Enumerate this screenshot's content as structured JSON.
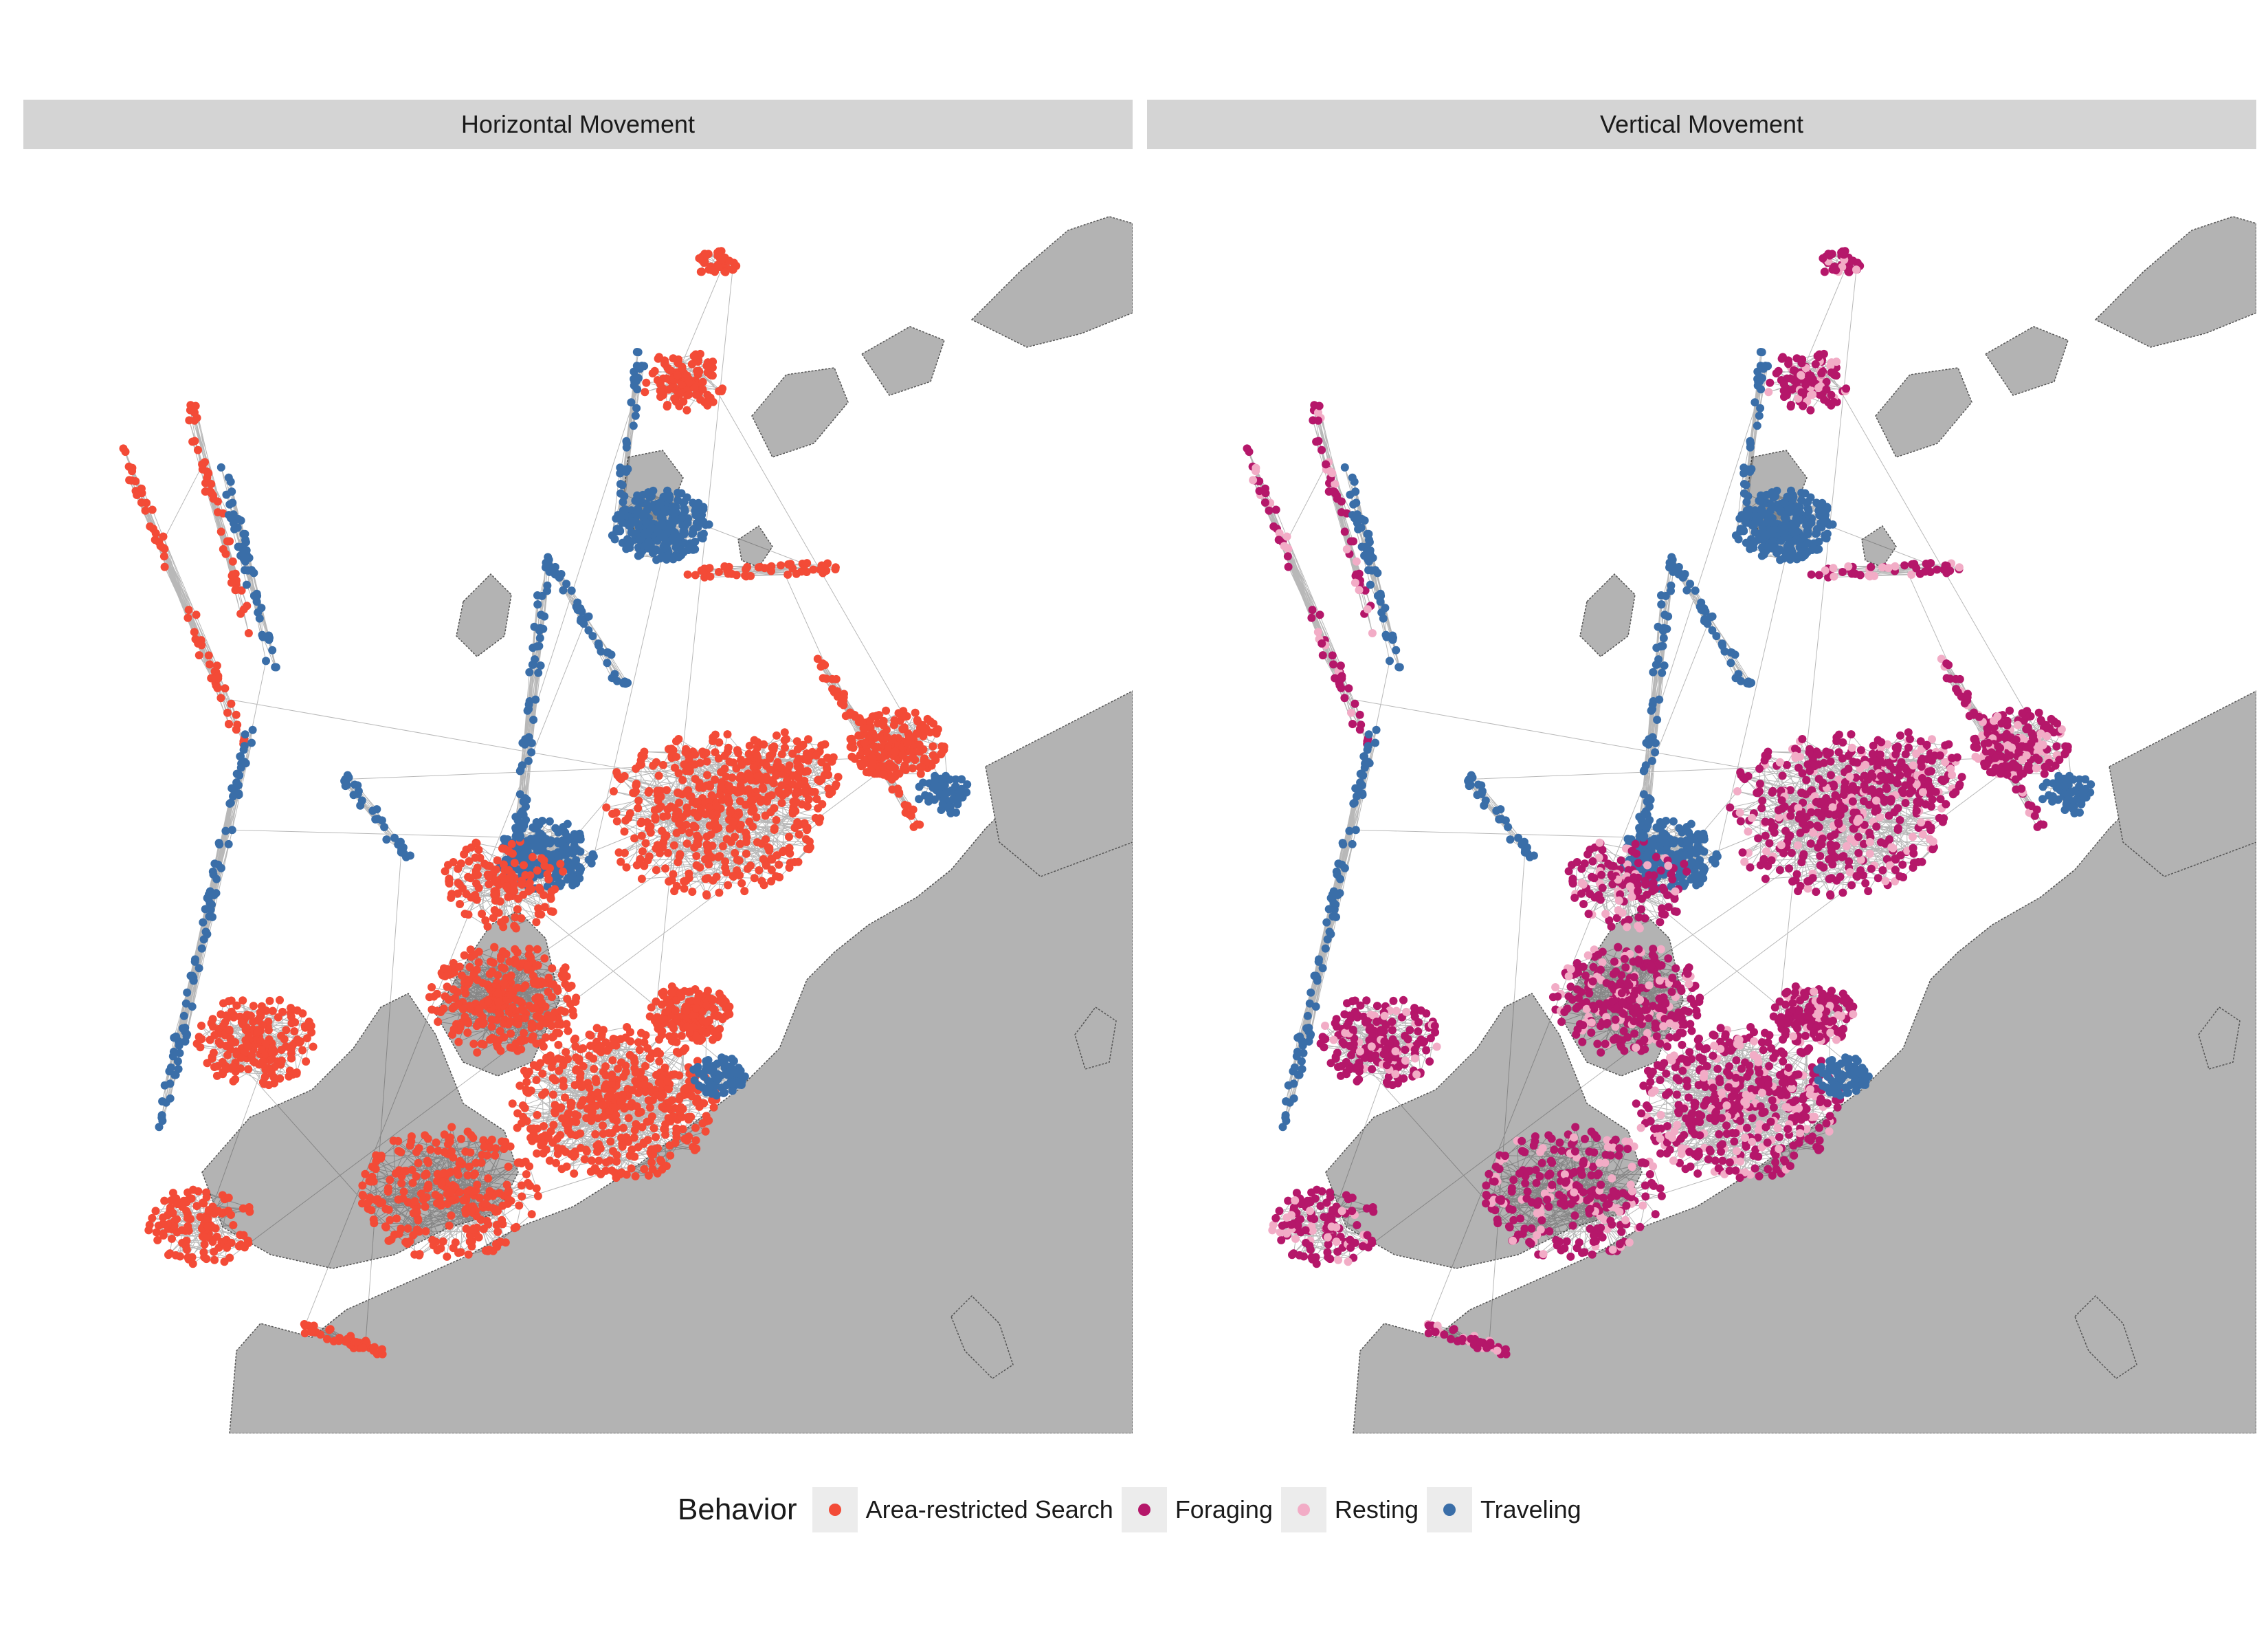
{
  "chart_data": {
    "type": "scatter",
    "panels": [
      {
        "title": "Horizontal Movement",
        "behaviors": [
          "Area-restricted Search",
          "Traveling"
        ]
      },
      {
        "title": "Vertical Movement",
        "behaviors": [
          "Foraging",
          "Resting",
          "Traveling"
        ]
      }
    ],
    "legend": {
      "title": "Behavior",
      "placement": "bottom",
      "items": [
        {
          "label": "Area-restricted Search",
          "color": "#f34b37"
        },
        {
          "label": "Foraging",
          "color": "#b5176a"
        },
        {
          "label": "Resting",
          "color": "#f2acc6"
        },
        {
          "label": "Traveling",
          "color": "#3a6ea8"
        }
      ]
    },
    "land_color": "#b3b3b3",
    "track_color": "#333333",
    "grid": false
  }
}
